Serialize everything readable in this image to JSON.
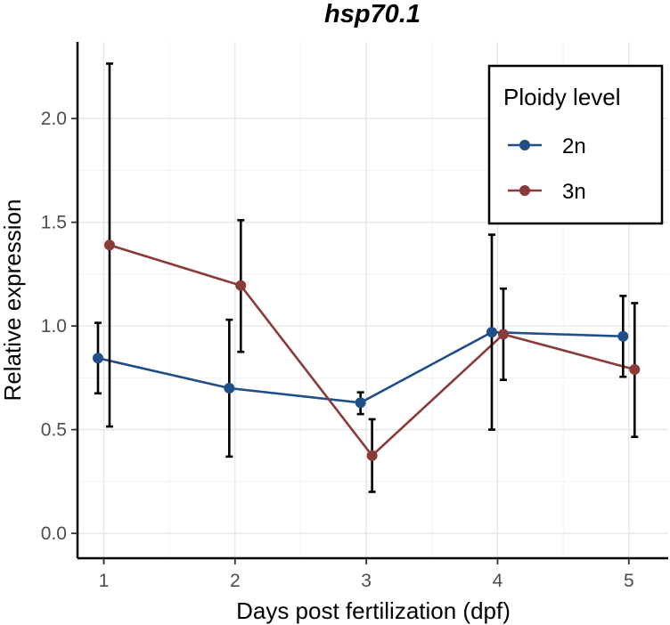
{
  "chart_data": {
    "type": "line",
    "title": "hsp70.1",
    "xlabel": "Days post fertilization (dpf)",
    "ylabel": "Relative expression",
    "x": [
      1,
      2,
      3,
      4,
      5
    ],
    "x_tick_labels": [
      "1",
      "2",
      "3",
      "4",
      "5"
    ],
    "y_ticks": [
      0.0,
      0.5,
      1.0,
      1.5,
      2.0
    ],
    "y_tick_labels": [
      "0.0",
      "0.5",
      "1.0",
      "1.5",
      "2.0"
    ],
    "xlim": [
      0.8,
      5.3
    ],
    "ylim": [
      -0.12,
      2.37
    ],
    "grid": true,
    "legend": {
      "title": "Ploidy level",
      "position": "top-right"
    },
    "series": [
      {
        "name": "2n",
        "color": "#1f4e89",
        "values": [
          0.845,
          0.7,
          0.63,
          0.97,
          0.95
        ],
        "err_low": [
          0.675,
          0.37,
          0.575,
          0.5,
          0.755
        ],
        "err_high": [
          1.015,
          1.03,
          0.68,
          1.44,
          1.145
        ]
      },
      {
        "name": "3n",
        "color": "#8b3a3a",
        "values": [
          1.39,
          1.195,
          0.375,
          0.96,
          0.79
        ],
        "err_low": [
          0.515,
          0.875,
          0.2,
          0.74,
          0.465
        ],
        "err_high": [
          2.265,
          1.51,
          0.55,
          1.18,
          1.11
        ]
      }
    ]
  }
}
